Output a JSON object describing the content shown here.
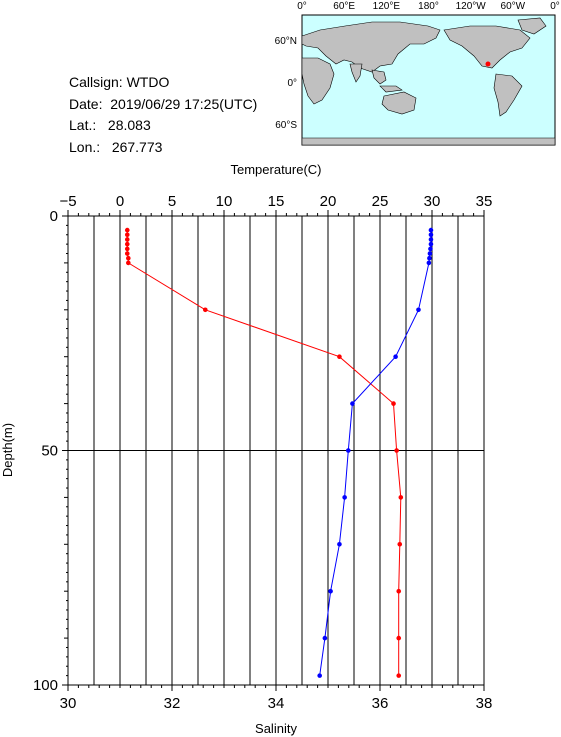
{
  "station": {
    "callsign_label": "Callsign:",
    "callsign": "WTDO",
    "date_label": "Date:",
    "date": "2019/06/29 17:25(UTC)",
    "lat_label": "Lat.:",
    "lat": "28.083",
    "lon_label": "Lon.:",
    "lon": "267.773"
  },
  "map": {
    "top_labels": [
      "0°",
      "60°E",
      "120°E",
      "180°",
      "120°W",
      "60°W",
      "0°"
    ],
    "side_labels": [
      "60°N",
      "0°",
      "60°S"
    ],
    "ocean_color": "#ccffff",
    "land_color": "#c0c0c0",
    "marker_color": "#ff0000"
  },
  "chart_data": {
    "type": "line",
    "top_axis": {
      "label": "Temperature(C)",
      "range": [
        -5,
        35
      ],
      "ticks": [
        -5,
        0,
        5,
        10,
        15,
        20,
        25,
        30,
        35
      ]
    },
    "bottom_axis": {
      "label": "Salinity",
      "range": [
        30,
        38
      ],
      "ticks": [
        30,
        32,
        34,
        36,
        38
      ]
    },
    "y_axis": {
      "label": "Depth(m)",
      "range": [
        0,
        100
      ],
      "inverted": true,
      "ticks": [
        0,
        50,
        100
      ]
    },
    "grid": "vertical lines every 2.5 °C, horizontal line at 50 m",
    "series": [
      {
        "color": "#ff0000",
        "axis": "temperature",
        "points": [
          [
            0.7,
            3
          ],
          [
            0.7,
            4
          ],
          [
            0.7,
            5
          ],
          [
            0.7,
            6
          ],
          [
            0.7,
            7
          ],
          [
            0.7,
            8
          ],
          [
            0.8,
            9
          ],
          [
            0.8,
            10
          ],
          [
            8.2,
            20
          ],
          [
            21.1,
            30
          ],
          [
            26.3,
            40
          ],
          [
            26.6,
            50
          ],
          [
            27.0,
            60
          ],
          [
            26.9,
            70
          ],
          [
            26.8,
            80
          ],
          [
            26.8,
            90
          ],
          [
            26.8,
            98
          ]
        ]
      },
      {
        "color": "#0000ff",
        "axis": "salinity",
        "points": [
          [
            36.98,
            3
          ],
          [
            36.98,
            4
          ],
          [
            36.98,
            5
          ],
          [
            36.98,
            6
          ],
          [
            36.97,
            7
          ],
          [
            36.96,
            8
          ],
          [
            36.95,
            9
          ],
          [
            36.94,
            10
          ],
          [
            36.74,
            20
          ],
          [
            36.3,
            30
          ],
          [
            35.47,
            40
          ],
          [
            35.39,
            50
          ],
          [
            35.32,
            60
          ],
          [
            35.22,
            70
          ],
          [
            35.05,
            80
          ],
          [
            34.94,
            90
          ],
          [
            34.84,
            98
          ]
        ]
      }
    ]
  }
}
